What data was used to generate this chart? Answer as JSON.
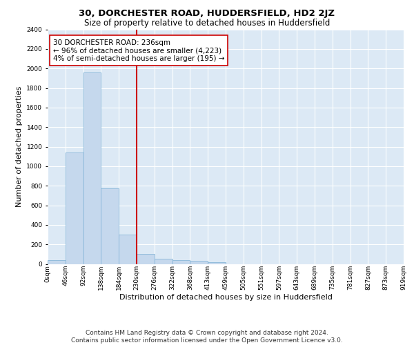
{
  "title": "30, DORCHESTER ROAD, HUDDERSFIELD, HD2 2JZ",
  "subtitle": "Size of property relative to detached houses in Huddersfield",
  "xlabel": "Distribution of detached houses by size in Huddersfield",
  "ylabel": "Number of detached properties",
  "bar_color": "#c5d8ed",
  "bar_edge_color": "#7aafd4",
  "background_color": "#dce9f5",
  "grid_color": "#ffffff",
  "vline_color": "#cc0000",
  "vline_x": 5,
  "annotation_text": "30 DORCHESTER ROAD: 236sqm\n← 96% of detached houses are smaller (4,223)\n4% of semi-detached houses are larger (195) →",
  "annotation_box_color": "#cc0000",
  "bin_labels": [
    "0sqm",
    "46sqm",
    "92sqm",
    "138sqm",
    "184sqm",
    "230sqm",
    "276sqm",
    "322sqm",
    "368sqm",
    "413sqm",
    "459sqm",
    "505sqm",
    "551sqm",
    "597sqm",
    "643sqm",
    "689sqm",
    "735sqm",
    "781sqm",
    "827sqm",
    "873sqm",
    "919sqm"
  ],
  "bar_heights": [
    40,
    1140,
    1960,
    770,
    300,
    100,
    50,
    40,
    30,
    20,
    0,
    0,
    0,
    0,
    0,
    0,
    0,
    0,
    0,
    0
  ],
  "ylim": [
    0,
    2400
  ],
  "yticks": [
    0,
    200,
    400,
    600,
    800,
    1000,
    1200,
    1400,
    1600,
    1800,
    2000,
    2200,
    2400
  ],
  "footnote": "Contains HM Land Registry data © Crown copyright and database right 2024.\nContains public sector information licensed under the Open Government Licence v3.0.",
  "title_fontsize": 9.5,
  "subtitle_fontsize": 8.5,
  "xlabel_fontsize": 8,
  "ylabel_fontsize": 8,
  "tick_fontsize": 6.5,
  "annotation_fontsize": 7.5,
  "footnote_fontsize": 6.5
}
